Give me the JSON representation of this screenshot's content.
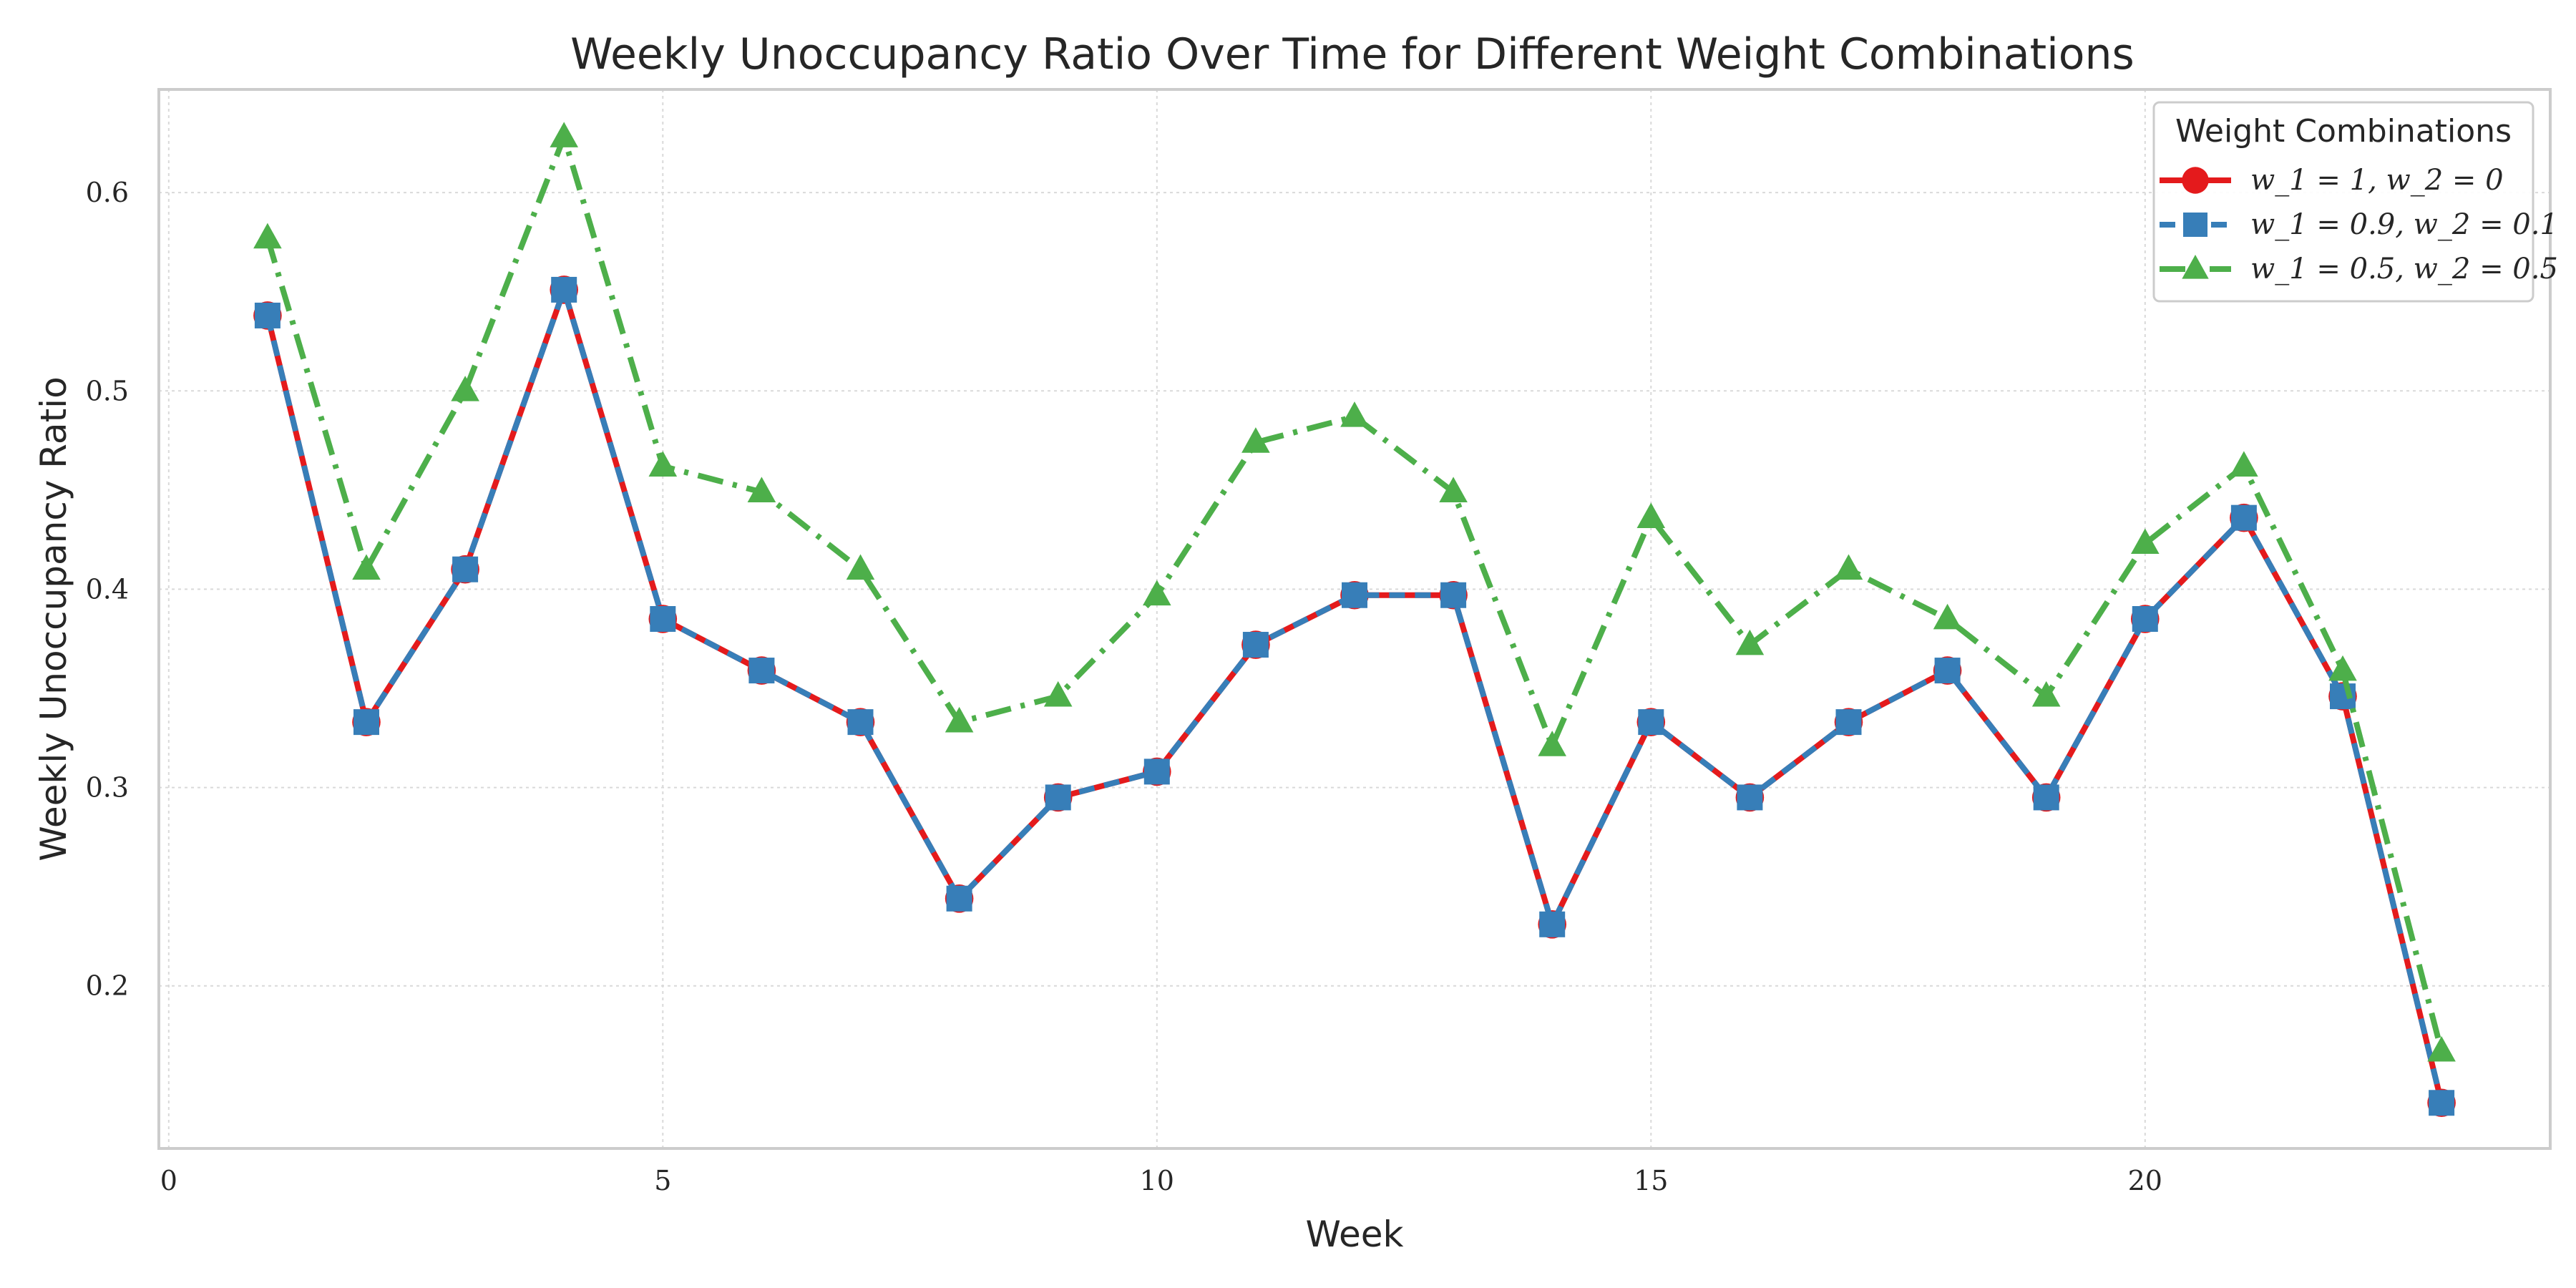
{
  "chart_data": {
    "type": "line",
    "title": "Weekly Unoccupancy Ratio Over Time for Different Weight Combinations",
    "xlabel": "Week",
    "ylabel": "Weekly Unoccupancy Ratio",
    "xlim": [
      -0.1,
      24.1
    ],
    "ylim": [
      0.118,
      0.652
    ],
    "xticks": [
      0,
      5,
      10,
      15,
      20
    ],
    "yticks": [
      0.2,
      0.3,
      0.4,
      0.5,
      0.6
    ],
    "grid": true,
    "legend": {
      "title": "Weight Combinations",
      "placement": "top-right"
    },
    "x": [
      1,
      2,
      3,
      4,
      5,
      6,
      7,
      8,
      9,
      10,
      11,
      12,
      13,
      14,
      15,
      16,
      17,
      18,
      19,
      20,
      21,
      22,
      23
    ],
    "series": [
      {
        "name": "w_1 = 1, w_2 = 0",
        "color": "#e41a1c",
        "marker": "circle",
        "line_style": "solid",
        "values": [
          0.538,
          0.333,
          0.41,
          0.551,
          0.385,
          0.359,
          0.333,
          0.244,
          0.295,
          0.308,
          0.372,
          0.397,
          0.397,
          0.231,
          0.333,
          0.295,
          0.333,
          0.359,
          0.295,
          0.385,
          0.436,
          0.346,
          0.141
        ]
      },
      {
        "name": "w_1 = 0.9, w_2 = 0.1",
        "color": "#377eb8",
        "marker": "square",
        "line_style": "dashed",
        "values": [
          0.538,
          0.333,
          0.41,
          0.551,
          0.385,
          0.359,
          0.333,
          0.244,
          0.295,
          0.308,
          0.372,
          0.397,
          0.397,
          0.231,
          0.333,
          0.295,
          0.333,
          0.359,
          0.295,
          0.385,
          0.436,
          0.346,
          0.141
        ]
      },
      {
        "name": "w_1 = 0.5, w_2 = 0.5",
        "color": "#4daf4a",
        "marker": "triangle",
        "line_style": "dashdot",
        "values": [
          0.577,
          0.41,
          0.5,
          0.628,
          0.462,
          0.449,
          0.41,
          0.333,
          0.346,
          0.397,
          0.474,
          0.487,
          0.449,
          0.321,
          0.436,
          0.372,
          0.41,
          0.385,
          0.346,
          0.423,
          0.462,
          0.359,
          0.167
        ]
      }
    ]
  }
}
